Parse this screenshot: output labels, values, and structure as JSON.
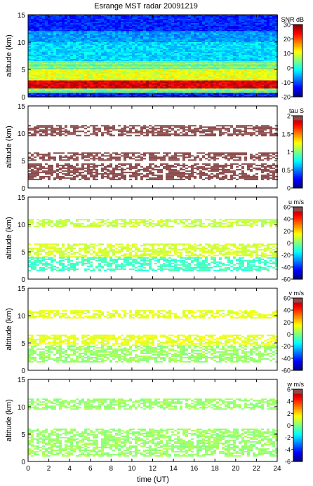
{
  "chart_data": {
    "type": "heatmap",
    "title": "Esrange MST radar 20091219",
    "xlabel": "time (UT)",
    "xlim": [
      0,
      24
    ],
    "xticks": [
      "0",
      "2",
      "4",
      "6",
      "8",
      "10",
      "12",
      "14",
      "16",
      "18",
      "20",
      "22",
      "24"
    ],
    "panels": [
      {
        "ylabel": "altitude (km)",
        "ylim": [
          0,
          15
        ],
        "yticks": [
          "0",
          "5",
          "10",
          "15"
        ],
        "colorbar": {
          "label": "SNR dB",
          "min": -20,
          "max": 30,
          "ticks": [
            "30",
            "20",
            "10",
            "0",
            "-10",
            "-20"
          ],
          "colormap": "jet"
        },
        "layers": [
          {
            "alt_min": 0.0,
            "alt_max": 15.0,
            "value": -12
          },
          {
            "alt_min": 10.0,
            "alt_max": 12.0,
            "value": -6
          },
          {
            "alt_min": 6.5,
            "alt_max": 10.0,
            "value": -3
          },
          {
            "alt_min": 5.0,
            "alt_max": 6.5,
            "value": 5
          },
          {
            "alt_min": 3.0,
            "alt_max": 5.0,
            "value": 10
          },
          {
            "alt_min": 1.5,
            "alt_max": 3.0,
            "value": 25
          },
          {
            "alt_min": 0.8,
            "alt_max": 1.5,
            "value": 5
          }
        ]
      },
      {
        "ylabel": "altitude (km)",
        "ylim": [
          0,
          15
        ],
        "yticks": [
          "0",
          "5",
          "10",
          "15"
        ],
        "colorbar": {
          "label": "tau S",
          "min": 0,
          "max": 2,
          "ticks": [
            "2",
            "1.5",
            "1",
            "0.5",
            "0"
          ],
          "colormap": "jet-brown-top"
        },
        "layers": [
          {
            "alt_min": 9.5,
            "alt_max": 11.5,
            "value": 2.0
          },
          {
            "alt_min": 5.0,
            "alt_max": 6.5,
            "value": 2.0
          },
          {
            "alt_min": 1.5,
            "alt_max": 4.5,
            "value": 2.0
          }
        ]
      },
      {
        "ylabel": "altitude (km)",
        "ylim": [
          0,
          15
        ],
        "yticks": [
          "0",
          "5",
          "10",
          "15"
        ],
        "colorbar": {
          "label": "u m/s",
          "min": -60,
          "max": 60,
          "ticks": [
            "60",
            "40",
            "20",
            "0",
            "-20",
            "-40",
            "-60"
          ],
          "colormap": "jet-brown-top"
        },
        "layers": [
          {
            "alt_min": 9.5,
            "alt_max": 11.0,
            "value": 8
          },
          {
            "alt_min": 4.0,
            "alt_max": 6.5,
            "value": 10
          },
          {
            "alt_min": 1.5,
            "alt_max": 4.0,
            "value": -8
          }
        ]
      },
      {
        "ylabel": "altitude (km)",
        "ylim": [
          0,
          15
        ],
        "yticks": [
          "0",
          "5",
          "10",
          "15"
        ],
        "colorbar": {
          "label": "v m/s",
          "min": -60,
          "max": 60,
          "ticks": [
            "60",
            "40",
            "20",
            "0",
            "-20",
            "-40",
            "-60"
          ],
          "colormap": "jet-brown-top"
        },
        "layers": [
          {
            "alt_min": 9.5,
            "alt_max": 11.0,
            "value": 12
          },
          {
            "alt_min": 4.5,
            "alt_max": 6.5,
            "value": 12
          },
          {
            "alt_min": 1.5,
            "alt_max": 4.5,
            "value": 3
          }
        ]
      },
      {
        "ylabel": "altitude (km)",
        "ylim": [
          0,
          15
        ],
        "yticks": [
          "0",
          "5",
          "10",
          "15"
        ],
        "colorbar": {
          "label": "w m/s",
          "min": -6,
          "max": 6,
          "ticks": [
            "6",
            "4",
            "2",
            "0",
            "-2",
            "-4",
            "-6"
          ],
          "colormap": "jet-brown-top"
        },
        "layers": [
          {
            "alt_min": 9.5,
            "alt_max": 11.5,
            "value": 0.3
          },
          {
            "alt_min": 1.0,
            "alt_max": 6.0,
            "value": 0.3
          }
        ]
      }
    ]
  }
}
